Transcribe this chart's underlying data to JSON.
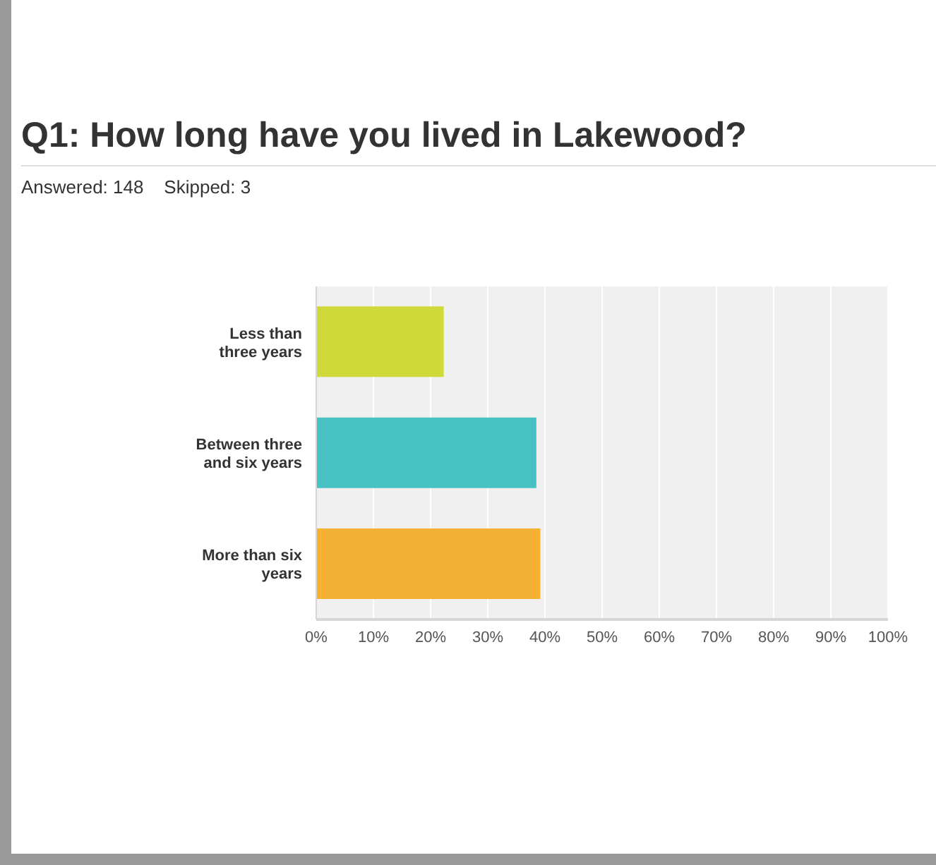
{
  "chart_data": {
    "type": "bar",
    "orientation": "horizontal",
    "title": "Q1: How long have you lived in Lakewood?",
    "subtitle": "Answered: 148    Skipped: 3",
    "categories": [
      "Less than three years",
      "Between three and six years",
      "More than six years"
    ],
    "values": [
      22.3,
      38.5,
      39.2
    ],
    "colors": [
      "#cfd93a",
      "#47c1c1",
      "#f4b133"
    ],
    "xlim": [
      0,
      100
    ],
    "xticks": [
      {
        "value": 0,
        "label": "0%"
      },
      {
        "value": 10,
        "label": "10%"
      },
      {
        "value": 20,
        "label": "20%"
      },
      {
        "value": 30,
        "label": "30%"
      },
      {
        "value": 40,
        "label": "40%"
      },
      {
        "value": 50,
        "label": "50%"
      },
      {
        "value": 60,
        "label": "60%"
      },
      {
        "value": 70,
        "label": "70%"
      },
      {
        "value": 80,
        "label": "80%"
      },
      {
        "value": 90,
        "label": "90%"
      },
      {
        "value": 100,
        "label": "100%"
      }
    ],
    "grid": "x"
  }
}
